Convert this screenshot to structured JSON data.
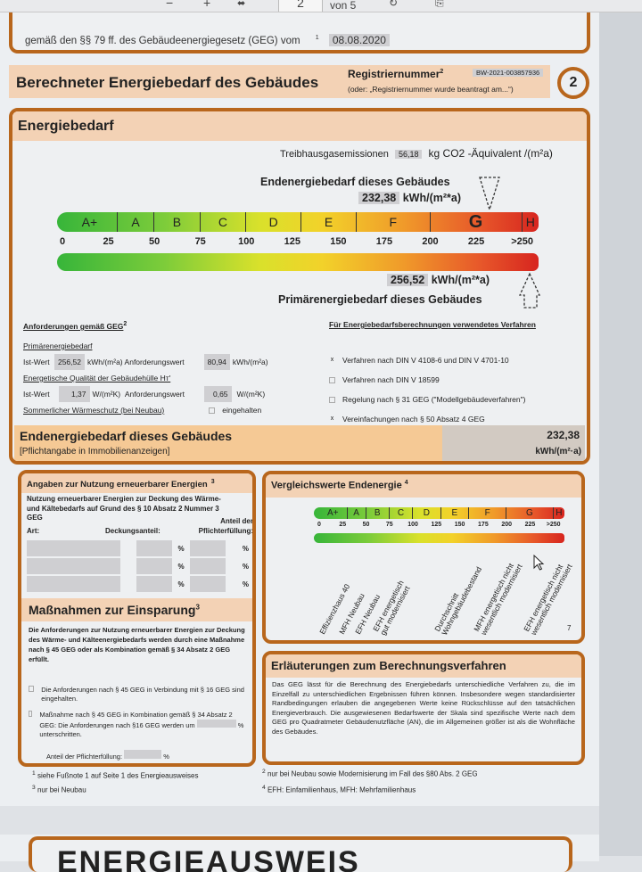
{
  "toolbar": {
    "zoom_out": "−",
    "zoom_in": "+",
    "fit_icon": "fit-width-icon",
    "page_current": "2",
    "page_total": "von 5",
    "rotate_icon": "rotate-icon",
    "copy_icon": "copy-icon"
  },
  "top_box": {
    "text": "gemäß den §§ 79 ff. des Gebäudeenergiegesetz (GEG) vom",
    "footnote": "1",
    "date": "08.08.2020"
  },
  "header": {
    "title": "Berechneter Energiebedarf des Gebäudes",
    "reg_label": "Registriernummer",
    "reg_sup": "2",
    "reg_value": "BW-2021-003857936",
    "reg_hint": "(oder: „Registriernummer wurde beantragt am...“)",
    "page_badge": "2"
  },
  "energiebedarf": {
    "title": "Energiebedarf",
    "co2_label": "Treibhausgasemissionen",
    "co2_value": "56,18",
    "co2_unit": "kg CO2 -Äquivalent /(m²a)",
    "end_label": "Endenergiebedarf dieses Gebäudes",
    "end_value": "232,38",
    "end_unit": "kWh/(m²*a)",
    "prim_value": "256,52",
    "prim_unit": "kWh/(m²*a)",
    "prim_label": "Primärenergiebedarf dieses Gebäudes",
    "scale": {
      "classes": [
        {
          "label": "A+",
          "to": 30
        },
        {
          "label": "A",
          "to": 50
        },
        {
          "label": "B",
          "to": 75
        },
        {
          "label": "C",
          "to": 100
        },
        {
          "label": "D",
          "to": 130
        },
        {
          "label": "E",
          "to": 160
        },
        {
          "label": "F",
          "to": 200
        },
        {
          "label": "G",
          "to": 250
        },
        {
          "label": "H",
          "to": 260
        }
      ],
      "ticks": [
        "0",
        "25",
        "50",
        "75",
        "100",
        "125",
        "150",
        "175",
        "200",
        "225",
        ">250"
      ],
      "tick_values": [
        0,
        25,
        50,
        75,
        100,
        125,
        150,
        175,
        200,
        225,
        250
      ],
      "highlight_class": "G",
      "end_marker": 232.38,
      "prim_marker": 256.52
    }
  },
  "anforderungen": {
    "title": "Anforderungen gemäß GEG",
    "title_sup": "2",
    "prim_heading": "Primärenergiebedarf",
    "ist_label": "Ist-Wert",
    "prim_ist": "256,52",
    "prim_unit": "kWh/(m²a)",
    "anf_label": "Anforderungswert",
    "prim_anf": "80,94",
    "prim_anf_unit": "kWh/(m²a)",
    "ht_heading": "Energetische Qualität der Gebäudehülle Hт'",
    "ht_ist": "1,37",
    "ht_unit": "W/(m²K)",
    "ht_anf": "0,65",
    "ht_anf_unit": "W/(m²K)",
    "sommer": "Sommerlicher Wärmeschutz (bei Neubau)",
    "sommer_check": "eingehalten"
  },
  "verfahren": {
    "title": "Für Energiebedarfsberechnungen verwendetes Verfahren",
    "items": [
      {
        "label": "Verfahren nach DIN V 4108-6 und DIN V 4701-10",
        "checked": "x"
      },
      {
        "label": "Verfahren nach DIN V 18599",
        "checked": ""
      },
      {
        "label": "Regelung nach § 31 GEG (\"Modellgebäudeverfahren\")",
        "checked": ""
      },
      {
        "label": "Vereinfachungen nach § 50 Absatz 4 GEG",
        "checked": "x"
      }
    ]
  },
  "summary": {
    "title": "Endenergiebedarf dieses Gebäudes",
    "sub": "[Pflichtangabe in Immobilienanzeigen]",
    "value": "232,38",
    "unit": "kWh/(m²·a)"
  },
  "erneuerbar": {
    "title": "Angaben zur Nutzung erneuerbarer Energien",
    "sup": "3",
    "text": "Nutzung erneuerbarer Energien zur Deckung des Wärme- und Kältebedarfs auf Grund des § 10 Absatz 2 Nummer 3 GEG",
    "col_art": "Art:",
    "col_deckung": "Deckungsanteil:",
    "col_anteil": "Anteil der Pflichterfüllung:",
    "pct": "%"
  },
  "massnahmen": {
    "title": "Maßnahmen zur Einsparung",
    "sup": "3",
    "text": "Die Anforderungen zur Nutzung erneuerbarer Energien zur Deckung des Wärme- und Kälteenergiebedarfs werden durch eine Maßnahme nach § 45 GEG oder als Kombination gemäß § 34 Absatz 2 GEG erfüllt.",
    "opt1": "Die Anforderungen nach § 45 GEG in Verbindung mit § 16 GEG sind eingehalten.",
    "opt2a": "Maßnahme nach § 45 GEG in Kombination gemäß § 34 Absatz 2 GEG: Die Anforderungen nach §16 GEG werden um",
    "opt2b": "% unterschritten.",
    "anteil": "Anteil der Pflichterfüllung:",
    "pct": "%"
  },
  "vergleich": {
    "title": "Vergleichswerte Endenergie",
    "sup": "4",
    "page_ref": "7",
    "labels": [
      {
        "text": "Effizienzhaus 40",
        "v": 12
      },
      {
        "text": "MFH Neubau",
        "v": 33
      },
      {
        "text": "EFH Neubau",
        "v": 50
      },
      {
        "text": "EFH energetisch\ngut modernisiert",
        "v": 77
      },
      {
        "text": "Durchschnitt\nWohngebäudebestand",
        "v": 143
      },
      {
        "text": "MFH energetisch nicht\nwesentlich modernisiert",
        "v": 185
      },
      {
        "text": "EFH energetisch nicht\nwesentlich modernisiert",
        "v": 238
      }
    ]
  },
  "erlaeuterung": {
    "title": "Erläuterungen zum Berechnungsverfahren",
    "text": "Das GEG lässt für die Berechnung des Energiebedarfs unterschiedliche Verfahren zu, die im Einzelfall zu unterschiedlichen Ergebnissen führen können. Insbesondere wegen standardisierter Randbedingungen erlauben die angegebenen Werte keine Rückschlüsse auf den tatsächlichen Energieverbrauch. Die ausgewiesenen Bedarfswerte der Skala sind spezifische Werte nach dem GEG pro Quadratmeter Gebäudenutzfläche (AN), die im Allgemeinen größer ist als die Wohnfläche des Gebäudes."
  },
  "footnotes": [
    {
      "n": "1",
      "t": "siehe Fußnote 1 auf Seite 1 des Energieausweises"
    },
    {
      "n": "2",
      "t": "nur bei Neubau sowie Modernisierung im Fall des §80 Abs. 2 GEG"
    },
    {
      "n": "3",
      "t": "nur bei Neubau"
    },
    {
      "n": "4",
      "t": "EFH: Einfamilienhaus, MFH: Mehrfamilienhaus"
    }
  ],
  "next_page_title": "ENERGIEAUSWEIS",
  "colors": {
    "border": "#b8661c",
    "band": "#f3d2b5",
    "field": "#cfcfd2"
  }
}
